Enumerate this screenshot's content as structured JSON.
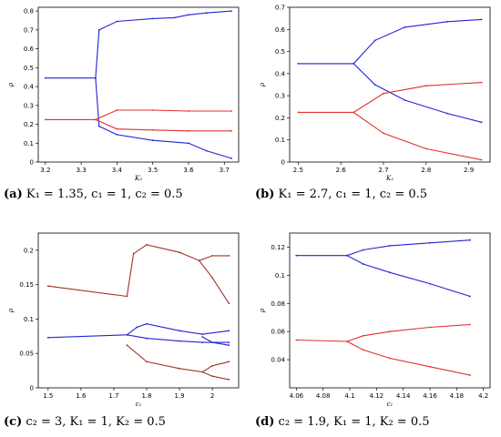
{
  "panels": [
    {
      "id": "a",
      "caption_label": "(a)",
      "caption_text": "K₁ = 1.35, c₁ = 1, c₂ = 0.5",
      "chart_data": {
        "type": "scatter",
        "xlabel": "K₂",
        "ylabel": "ρ",
        "xlim": [
          3.18,
          3.74
        ],
        "ylim": [
          0.0,
          0.82
        ],
        "xticks": [
          3.2,
          3.3,
          3.4,
          3.5,
          3.6,
          3.7
        ],
        "yticks": [
          0.0,
          0.1,
          0.2,
          0.3,
          0.4,
          0.5,
          0.6,
          0.7,
          0.8
        ],
        "grid": false,
        "series": [
          {
            "color": "#2323d6",
            "points": [
              [
                3.2,
                0.445
              ],
              [
                3.34,
                0.445
              ],
              [
                3.35,
                0.7
              ],
              [
                3.4,
                0.745
              ],
              [
                3.5,
                0.76
              ],
              [
                3.56,
                0.765
              ],
              [
                3.6,
                0.78
              ],
              [
                3.65,
                0.79
              ],
              [
                3.72,
                0.8
              ]
            ]
          },
          {
            "color": "#2323d6",
            "points": [
              [
                3.34,
                0.445
              ],
              [
                3.35,
                0.19
              ],
              [
                3.4,
                0.145
              ],
              [
                3.5,
                0.115
              ],
              [
                3.6,
                0.1
              ],
              [
                3.65,
                0.06
              ],
              [
                3.72,
                0.02
              ]
            ]
          },
          {
            "color": "#e03030",
            "points": [
              [
                3.2,
                0.225
              ],
              [
                3.34,
                0.225
              ],
              [
                3.4,
                0.275
              ],
              [
                3.5,
                0.275
              ],
              [
                3.6,
                0.27
              ],
              [
                3.72,
                0.27
              ]
            ]
          },
          {
            "color": "#e03030",
            "points": [
              [
                3.34,
                0.225
              ],
              [
                3.4,
                0.175
              ],
              [
                3.5,
                0.17
              ],
              [
                3.6,
                0.165
              ],
              [
                3.72,
                0.165
              ]
            ]
          }
        ]
      }
    },
    {
      "id": "b",
      "caption_label": "(b)",
      "caption_text": "K₁ = 2.7, c₁ = 1, c₂ = 0.5",
      "chart_data": {
        "type": "scatter",
        "xlabel": "K₂",
        "ylabel": "ρ",
        "xlim": [
          2.48,
          2.95
        ],
        "ylim": [
          0.0,
          0.7
        ],
        "xticks": [
          2.5,
          2.6,
          2.7,
          2.8,
          2.9
        ],
        "yticks": [
          0.0,
          0.1,
          0.2,
          0.3,
          0.4,
          0.5,
          0.6,
          0.7
        ],
        "grid": false,
        "series": [
          {
            "color": "#2323d6",
            "points": [
              [
                2.5,
                0.445
              ],
              [
                2.63,
                0.445
              ],
              [
                2.68,
                0.55
              ],
              [
                2.75,
                0.61
              ],
              [
                2.85,
                0.635
              ],
              [
                2.93,
                0.645
              ]
            ]
          },
          {
            "color": "#2323d6",
            "points": [
              [
                2.63,
                0.445
              ],
              [
                2.68,
                0.35
              ],
              [
                2.75,
                0.28
              ],
              [
                2.85,
                0.22
              ],
              [
                2.93,
                0.18
              ]
            ]
          },
          {
            "color": "#e03030",
            "points": [
              [
                2.5,
                0.225
              ],
              [
                2.63,
                0.225
              ],
              [
                2.7,
                0.31
              ],
              [
                2.8,
                0.345
              ],
              [
                2.93,
                0.36
              ]
            ]
          },
          {
            "color": "#e03030",
            "points": [
              [
                2.63,
                0.225
              ],
              [
                2.7,
                0.13
              ],
              [
                2.8,
                0.06
              ],
              [
                2.93,
                0.01
              ]
            ]
          }
        ]
      }
    },
    {
      "id": "c",
      "caption_label": "(c)",
      "caption_text": "c₂ = 3, K₁ = 1, K₂ = 0.5",
      "chart_data": {
        "type": "scatter",
        "xlabel": "c₁",
        "ylabel": "ρ",
        "xlim": [
          1.47,
          2.08
        ],
        "ylim": [
          0.0,
          0.225
        ],
        "xticks": [
          1.5,
          1.6,
          1.7,
          1.8,
          1.9,
          2.0
        ],
        "yticks": [
          0.0,
          0.05,
          0.1,
          0.15,
          0.2
        ],
        "grid": false,
        "series": [
          {
            "color": "#a0342a",
            "points": [
              [
                1.5,
                0.148
              ],
              [
                1.74,
                0.133
              ],
              [
                1.76,
                0.195
              ],
              [
                1.8,
                0.208
              ],
              [
                1.9,
                0.197
              ],
              [
                1.96,
                0.185
              ],
              [
                2.0,
                0.192
              ],
              [
                2.05,
                0.192
              ]
            ]
          },
          {
            "color": "#a0342a",
            "points": [
              [
                1.96,
                0.185
              ],
              [
                2.0,
                0.16
              ],
              [
                2.05,
                0.123
              ]
            ]
          },
          {
            "color": "#a0342a",
            "points": [
              [
                1.74,
                0.062
              ],
              [
                1.8,
                0.038
              ],
              [
                1.9,
                0.028
              ],
              [
                1.97,
                0.023
              ],
              [
                2.0,
                0.032
              ],
              [
                2.05,
                0.038
              ]
            ]
          },
          {
            "color": "#a0342a",
            "points": [
              [
                1.97,
                0.023
              ],
              [
                2.0,
                0.017
              ],
              [
                2.05,
                0.012
              ]
            ]
          },
          {
            "color": "#2323d6",
            "points": [
              [
                1.5,
                0.073
              ],
              [
                1.74,
                0.077
              ],
              [
                1.77,
                0.088
              ],
              [
                1.8,
                0.093
              ],
              [
                1.9,
                0.083
              ],
              [
                1.97,
                0.078
              ],
              [
                2.05,
                0.083
              ]
            ]
          },
          {
            "color": "#2323d6",
            "points": [
              [
                1.97,
                0.074
              ],
              [
                2.0,
                0.066
              ],
              [
                2.05,
                0.062
              ]
            ]
          },
          {
            "color": "#2323d6",
            "points": [
              [
                1.74,
                0.077
              ],
              [
                1.8,
                0.072
              ],
              [
                1.9,
                0.068
              ],
              [
                1.97,
                0.066
              ],
              [
                2.05,
                0.066
              ]
            ]
          }
        ]
      }
    },
    {
      "id": "d",
      "caption_label": "(d)",
      "caption_text": "c₂ = 1.9, K₁ = 1, K₂ = 0.5",
      "chart_data": {
        "type": "scatter",
        "xlabel": "c₁",
        "ylabel": "ρ",
        "xlim": [
          4.055,
          4.205
        ],
        "ylim": [
          0.02,
          0.13
        ],
        "xticks": [
          4.06,
          4.08,
          4.1,
          4.12,
          4.14,
          4.16,
          4.18,
          4.2
        ],
        "yticks": [
          0.04,
          0.06,
          0.08,
          0.1,
          0.12
        ],
        "grid": false,
        "series": [
          {
            "color": "#2323d6",
            "points": [
              [
                4.06,
                0.114
              ],
              [
                4.098,
                0.114
              ],
              [
                4.11,
                0.118
              ],
              [
                4.13,
                0.121
              ],
              [
                4.16,
                0.123
              ],
              [
                4.19,
                0.125
              ]
            ]
          },
          {
            "color": "#2323d6",
            "points": [
              [
                4.098,
                0.114
              ],
              [
                4.11,
                0.108
              ],
              [
                4.13,
                0.102
              ],
              [
                4.16,
                0.094
              ],
              [
                4.19,
                0.085
              ]
            ]
          },
          {
            "color": "#e03030",
            "points": [
              [
                4.06,
                0.054
              ],
              [
                4.098,
                0.053
              ],
              [
                4.11,
                0.057
              ],
              [
                4.13,
                0.06
              ],
              [
                4.16,
                0.063
              ],
              [
                4.19,
                0.065
              ]
            ]
          },
          {
            "color": "#e03030",
            "points": [
              [
                4.098,
                0.053
              ],
              [
                4.11,
                0.047
              ],
              [
                4.13,
                0.041
              ],
              [
                4.16,
                0.035
              ],
              [
                4.19,
                0.029
              ]
            ]
          }
        ]
      }
    }
  ]
}
